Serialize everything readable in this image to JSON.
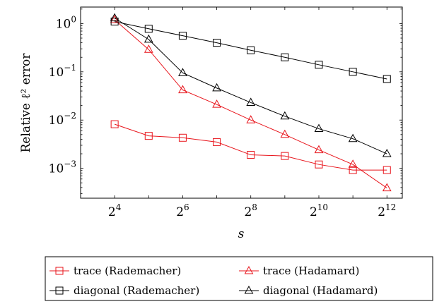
{
  "chart_data": {
    "type": "line",
    "xlabel": "s",
    "ylabel": "Relative ℓ² error",
    "x_scale": "log2",
    "y_scale": "log10",
    "xlim": [
      8,
      5600
    ],
    "ylim": [
      0.00024,
      2.2
    ],
    "x_ticks": [
      {
        "base": "2",
        "exp": "4",
        "value": 16
      },
      {
        "base": "2",
        "exp": "6",
        "value": 64
      },
      {
        "base": "2",
        "exp": "8",
        "value": 256
      },
      {
        "base": "2",
        "exp": "10",
        "value": 1024
      },
      {
        "base": "2",
        "exp": "12",
        "value": 4096
      }
    ],
    "y_ticks": [
      {
        "base": "10",
        "exp": "0",
        "value": 1
      },
      {
        "base": "10",
        "exp": "−1",
        "value": 0.1
      },
      {
        "base": "10",
        "exp": "−2",
        "value": 0.01
      },
      {
        "base": "10",
        "exp": "−3",
        "value": 0.001
      }
    ],
    "legend_position": "below",
    "series": [
      {
        "name": "trace (Rademacher)",
        "color": "#e8141b",
        "marker": "square",
        "x": [
          16,
          32,
          64,
          128,
          256,
          512,
          1024,
          2048,
          4096
        ],
        "y": [
          0.0082,
          0.0047,
          0.0043,
          0.0035,
          0.0019,
          0.0018,
          0.0012,
          0.00092,
          0.00092
        ]
      },
      {
        "name": "trace (Hadamard)",
        "color": "#e8141b",
        "marker": "triangle",
        "x": [
          16,
          32,
          64,
          128,
          256,
          512,
          1024,
          2048,
          4096
        ],
        "y": [
          1.2,
          0.29,
          0.042,
          0.021,
          0.01,
          0.005,
          0.0024,
          0.0012,
          0.00039
        ]
      },
      {
        "name": "diagonal (Rademacher)",
        "color": "#000000",
        "marker": "square",
        "x": [
          16,
          32,
          64,
          128,
          256,
          512,
          1024,
          2048,
          4096
        ],
        "y": [
          1.1,
          0.78,
          0.56,
          0.4,
          0.28,
          0.2,
          0.14,
          0.1,
          0.071
        ]
      },
      {
        "name": "diagonal (Hadamard)",
        "color": "#000000",
        "marker": "triangle",
        "x": [
          16,
          32,
          64,
          128,
          256,
          512,
          1024,
          2048,
          4096
        ],
        "y": [
          1.3,
          0.47,
          0.095,
          0.046,
          0.023,
          0.012,
          0.0066,
          0.0041,
          0.002
        ]
      }
    ]
  }
}
